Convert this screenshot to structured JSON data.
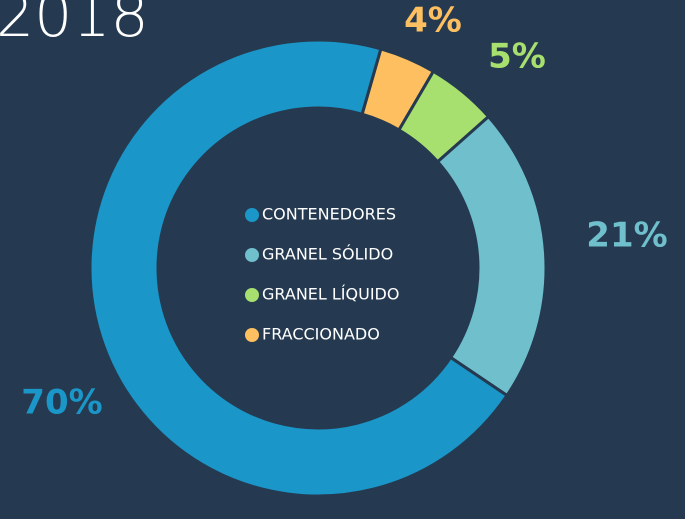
{
  "chart_data": {
    "type": "donut",
    "title": "2018",
    "categories": [
      "CONTENEDORES",
      "GRANEL SÓLIDO",
      "GRANEL LÍQUIDO",
      "FRACCIONADO"
    ],
    "values": [
      70,
      21,
      5,
      4
    ],
    "value_labels": [
      "70%",
      "21%",
      "5%",
      "4%"
    ],
    "colors": [
      "#1a96c8",
      "#6fbfcc",
      "#a7e06e",
      "#fdbf60"
    ]
  }
}
